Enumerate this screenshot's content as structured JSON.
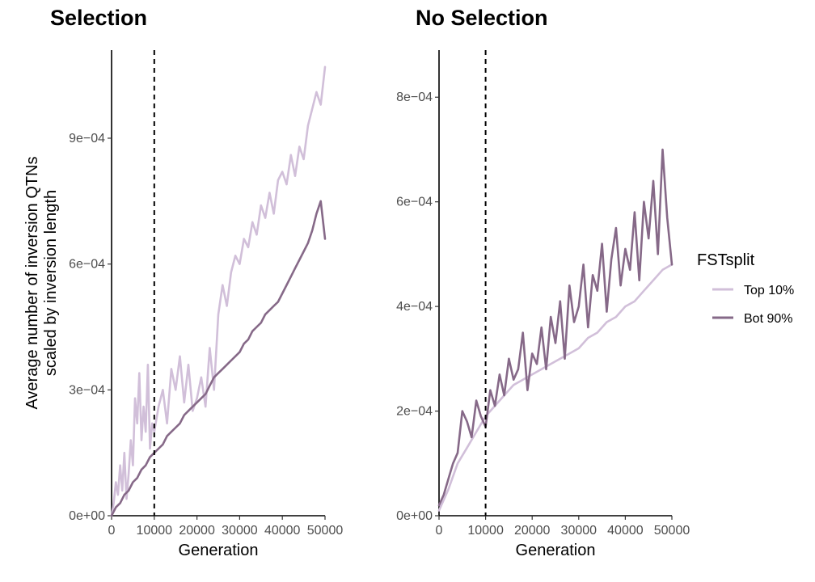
{
  "chart_data": [
    {
      "type": "line",
      "title": "Selection",
      "xlabel": "Generation",
      "ylabel_lines": [
        "Average number of inversion QTNs",
        "scaled by inversion length"
      ],
      "xlim": [
        0,
        50000
      ],
      "ylim": [
        0,
        0.00111
      ],
      "x_ticks": [
        0,
        10000,
        20000,
        30000,
        40000,
        50000
      ],
      "x_tick_labels": [
        "0",
        "10000",
        "20000",
        "30000",
        "40000",
        "50000"
      ],
      "y_ticks": [
        0,
        0.0003,
        0.0006,
        0.0009
      ],
      "y_tick_labels": [
        "0e+00",
        "3e−04",
        "6e−04",
        "9e−04"
      ],
      "vline_x": 10000,
      "grid": false,
      "series": [
        {
          "name": "Top 10%",
          "color": "#d1bfd9",
          "x": [
            0,
            500,
            1000,
            1500,
            2000,
            2500,
            3000,
            3500,
            4000,
            4500,
            5000,
            5500,
            6000,
            6500,
            7000,
            7500,
            8000,
            8500,
            9000,
            9500,
            10000,
            11000,
            12000,
            13000,
            14000,
            15000,
            16000,
            17000,
            18000,
            19000,
            20000,
            21000,
            22000,
            23000,
            24000,
            25000,
            26000,
            27000,
            28000,
            29000,
            30000,
            31000,
            32000,
            33000,
            34000,
            35000,
            36000,
            37000,
            38000,
            39000,
            40000,
            41000,
            42000,
            43000,
            44000,
            45000,
            46000,
            47000,
            48000,
            49000,
            50000
          ],
          "y": [
            0.0,
            3e-05,
            8e-05,
            5e-05,
            0.00012,
            6e-05,
            0.00015,
            4e-05,
            0.0001,
            0.00018,
            0.00012,
            0.00028,
            0.00022,
            0.00034,
            0.00018,
            0.00026,
            0.0002,
            0.00036,
            0.00016,
            0.00022,
            0.0002,
            0.00026,
            0.0003,
            0.00022,
            0.00035,
            0.0003,
            0.00038,
            0.00027,
            0.00036,
            0.00025,
            0.00028,
            0.00033,
            0.00026,
            0.0004,
            0.0003,
            0.00048,
            0.00055,
            0.0005,
            0.00058,
            0.00062,
            0.0006,
            0.00066,
            0.00064,
            0.0007,
            0.00067,
            0.00074,
            0.00071,
            0.00077,
            0.00072,
            0.0008,
            0.00082,
            0.00079,
            0.00086,
            0.00081,
            0.00088,
            0.00085,
            0.00093,
            0.00097,
            0.00101,
            0.00098,
            0.00107
          ]
        },
        {
          "name": "Bot 90%",
          "color": "#866988",
          "x": [
            0,
            1000,
            2000,
            3000,
            4000,
            5000,
            6000,
            7000,
            8000,
            9000,
            10000,
            11000,
            12000,
            13000,
            14000,
            15000,
            16000,
            17000,
            18000,
            19000,
            20000,
            21000,
            22000,
            23000,
            24000,
            25000,
            26000,
            27000,
            28000,
            29000,
            30000,
            31000,
            32000,
            33000,
            34000,
            35000,
            36000,
            37000,
            38000,
            39000,
            40000,
            41000,
            42000,
            43000,
            44000,
            45000,
            46000,
            47000,
            48000,
            49000,
            50000
          ],
          "y": [
            0.0,
            2e-05,
            3e-05,
            5e-05,
            6e-05,
            8e-05,
            9e-05,
            0.00011,
            0.00012,
            0.00014,
            0.00015,
            0.00016,
            0.00017,
            0.00019,
            0.0002,
            0.00021,
            0.00022,
            0.00024,
            0.00025,
            0.00026,
            0.00027,
            0.00028,
            0.00029,
            0.00031,
            0.00033,
            0.00034,
            0.00035,
            0.00036,
            0.00037,
            0.00038,
            0.00039,
            0.00041,
            0.00042,
            0.00044,
            0.00045,
            0.00046,
            0.00048,
            0.00049,
            0.0005,
            0.00051,
            0.00053,
            0.00055,
            0.00057,
            0.00059,
            0.00061,
            0.00063,
            0.00065,
            0.00068,
            0.00072,
            0.00075,
            0.00066
          ]
        }
      ]
    },
    {
      "type": "line",
      "title": "No Selection",
      "xlabel": "Generation",
      "xlim": [
        0,
        50000
      ],
      "ylim": [
        0,
        0.00089
      ],
      "x_ticks": [
        0,
        10000,
        20000,
        30000,
        40000,
        50000
      ],
      "x_tick_labels": [
        "0",
        "10000",
        "20000",
        "30000",
        "40000",
        "50000"
      ],
      "y_ticks": [
        0,
        0.0002,
        0.0004,
        0.0006,
        0.0008
      ],
      "y_tick_labels": [
        "0e+00",
        "2e−04",
        "4e−04",
        "6e−04",
        "8e−04"
      ],
      "vline_x": 10000,
      "grid": false,
      "series": [
        {
          "name": "Top 10%",
          "color": "#d1bfd9",
          "x": [
            0,
            2000,
            4000,
            6000,
            8000,
            10000,
            12000,
            14000,
            16000,
            18000,
            20000,
            22000,
            24000,
            26000,
            28000,
            30000,
            32000,
            34000,
            36000,
            38000,
            40000,
            42000,
            44000,
            46000,
            48000,
            50000
          ],
          "y": [
            1e-05,
            5e-05,
            0.0001,
            0.00013,
            0.00016,
            0.00019,
            0.00021,
            0.00023,
            0.00025,
            0.00026,
            0.00027,
            0.00028,
            0.00029,
            0.0003,
            0.00031,
            0.00032,
            0.00034,
            0.00035,
            0.00037,
            0.00038,
            0.0004,
            0.00041,
            0.00043,
            0.00045,
            0.00047,
            0.00048
          ]
        },
        {
          "name": "Bot 90%",
          "color": "#866988",
          "x": [
            0,
            1000,
            2000,
            3000,
            4000,
            5000,
            6000,
            7000,
            8000,
            9000,
            10000,
            11000,
            12000,
            13000,
            14000,
            15000,
            16000,
            17000,
            18000,
            19000,
            20000,
            21000,
            22000,
            23000,
            24000,
            25000,
            26000,
            27000,
            28000,
            29000,
            30000,
            31000,
            32000,
            33000,
            34000,
            35000,
            36000,
            37000,
            38000,
            39000,
            40000,
            41000,
            42000,
            43000,
            44000,
            45000,
            46000,
            47000,
            48000,
            49000,
            50000
          ],
          "y": [
            2e-05,
            4e-05,
            7e-05,
            0.0001,
            0.00012,
            0.0002,
            0.00018,
            0.00015,
            0.00022,
            0.00019,
            0.00017,
            0.00024,
            0.00021,
            0.00027,
            0.00023,
            0.0003,
            0.00026,
            0.00028,
            0.00035,
            0.00024,
            0.00031,
            0.00029,
            0.00036,
            0.00028,
            0.00038,
            0.00033,
            0.00041,
            0.0003,
            0.00044,
            0.00037,
            0.0004,
            0.00048,
            0.00036,
            0.00046,
            0.00043,
            0.00052,
            0.00039,
            0.00049,
            0.00055,
            0.00044,
            0.00051,
            0.00047,
            0.00058,
            0.00045,
            0.0006,
            0.00053,
            0.00064,
            0.0005,
            0.0007,
            0.00057,
            0.00048
          ]
        }
      ]
    }
  ],
  "legend": {
    "title": "FSTsplit",
    "items": [
      {
        "label": "Top 10%",
        "color": "#d1bfd9"
      },
      {
        "label": "Bot 90%",
        "color": "#866988"
      }
    ]
  }
}
